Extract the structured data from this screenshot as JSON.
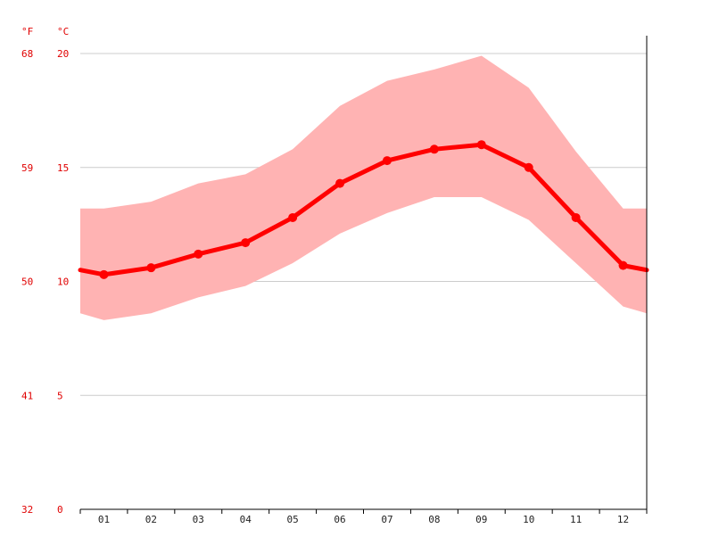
{
  "chart_data": {
    "type": "line",
    "units": {
      "fahrenheit": "°F",
      "celsius": "°C"
    },
    "y_ticks_c": [
      "20",
      "15",
      "10",
      "5",
      "0"
    ],
    "y_ticks_f": [
      "68",
      "59",
      "50",
      "41",
      "32"
    ],
    "ylim": [
      0,
      20
    ],
    "categories": [
      "01",
      "02",
      "03",
      "04",
      "05",
      "06",
      "07",
      "08",
      "09",
      "10",
      "11",
      "12"
    ],
    "series": [
      {
        "values": [
          10.3,
          10.6,
          11.2,
          11.7,
          12.8,
          14.3,
          15.3,
          15.8,
          16.0,
          15.0,
          12.8,
          10.7
        ]
      }
    ],
    "band_max": [
      13.2,
      13.5,
      14.3,
      14.7,
      15.8,
      17.7,
      18.8,
      19.3,
      19.9,
      18.5,
      15.7,
      13.2
    ],
    "band_min": [
      8.3,
      8.6,
      9.3,
      9.8,
      10.8,
      12.1,
      13.0,
      13.7,
      13.7,
      12.7,
      10.8,
      8.9
    ],
    "grid": true,
    "colors": {
      "line": "#ff0000",
      "band": "#ffb3b3",
      "grid": "#cccccc",
      "axis": "#000000",
      "unit_text": "#e00000"
    }
  }
}
